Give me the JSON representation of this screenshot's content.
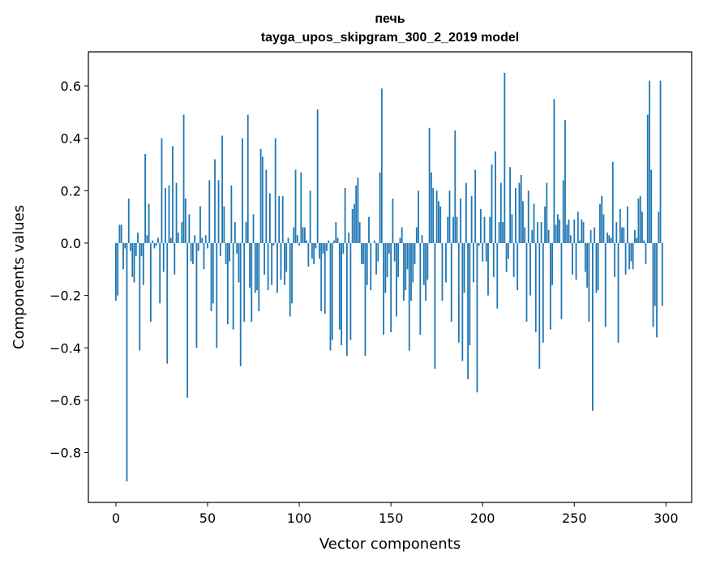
{
  "chart_data": {
    "type": "bar",
    "title": "печь",
    "subtitle": "tayga_upos_skipgram_300_2_2019 model",
    "xlabel": "Vector components",
    "ylabel": "Components values",
    "xlim": [
      -15,
      314
    ],
    "ylim": [
      -0.99,
      0.73
    ],
    "xticks": [
      0,
      50,
      100,
      150,
      200,
      250,
      300
    ],
    "yticks": [
      -0.8,
      -0.6,
      -0.4,
      -0.2,
      0.0,
      0.2,
      0.4,
      0.6
    ],
    "ytick_labels": [
      "−0.8",
      "−0.6",
      "−0.4",
      "−0.2",
      "0.0",
      "0.2",
      "0.4",
      "0.6"
    ],
    "bar_color": "#1f77b4",
    "grid": false,
    "values": [
      -0.22,
      -0.2,
      0.07,
      0.07,
      -0.1,
      -0.02,
      -0.91,
      0.17,
      -0.03,
      -0.13,
      -0.15,
      -0.05,
      0.04,
      -0.41,
      -0.05,
      -0.16,
      0.34,
      0.03,
      0.15,
      -0.3,
      0.01,
      -0.02,
      -0.01,
      0.02,
      -0.23,
      0.4,
      -0.11,
      0.21,
      -0.46,
      0.22,
      0.02,
      0.37,
      -0.12,
      0.23,
      0.04,
      0.0,
      0.08,
      0.49,
      0.17,
      -0.59,
      0.11,
      -0.07,
      -0.08,
      0.03,
      -0.4,
      -0.03,
      0.14,
      0.02,
      -0.1,
      0.03,
      -0.02,
      0.24,
      -0.26,
      -0.23,
      0.32,
      -0.4,
      0.24,
      -0.05,
      0.41,
      0.14,
      -0.08,
      -0.31,
      -0.07,
      0.22,
      -0.33,
      0.08,
      -0.04,
      -0.15,
      -0.47,
      0.4,
      -0.3,
      0.08,
      0.49,
      -0.17,
      -0.3,
      0.11,
      -0.19,
      -0.18,
      -0.26,
      0.36,
      0.33,
      -0.12,
      0.28,
      -0.18,
      0.19,
      -0.16,
      -0.01,
      0.4,
      -0.19,
      0.18,
      -0.14,
      0.18,
      -0.16,
      -0.11,
      0.02,
      -0.28,
      -0.23,
      0.06,
      0.28,
      0.03,
      -0.01,
      0.27,
      0.06,
      0.06,
      0.01,
      -0.09,
      0.2,
      -0.06,
      -0.08,
      -0.02,
      0.51,
      -0.06,
      -0.26,
      -0.04,
      -0.27,
      -0.03,
      0.01,
      -0.41,
      -0.37,
      0.01,
      0.08,
      0.02,
      -0.33,
      -0.39,
      -0.04,
      0.21,
      -0.43,
      0.04,
      -0.37,
      0.13,
      0.15,
      0.22,
      0.25,
      0.08,
      -0.08,
      -0.08,
      -0.43,
      -0.16,
      0.1,
      -0.18,
      0.0,
      0.01,
      -0.12,
      -0.07,
      0.27,
      0.59,
      -0.35,
      -0.19,
      -0.13,
      -0.04,
      -0.34,
      0.17,
      -0.07,
      -0.28,
      -0.13,
      0.02,
      0.06,
      -0.22,
      -0.18,
      -0.1,
      -0.41,
      -0.22,
      -0.15,
      -0.08,
      0.06,
      0.2,
      -0.35,
      0.03,
      -0.16,
      -0.22,
      -0.14,
      0.44,
      0.27,
      0.21,
      -0.48,
      0.2,
      0.16,
      0.14,
      -0.22,
      0.0,
      -0.15,
      0.1,
      0.2,
      -0.3,
      0.1,
      0.43,
      0.1,
      -0.38,
      0.17,
      -0.45,
      -0.19,
      0.23,
      -0.52,
      -0.39,
      0.18,
      -0.15,
      0.28,
      -0.57,
      -0.01,
      0.13,
      -0.07,
      0.1,
      -0.07,
      -0.2,
      0.1,
      0.3,
      -0.13,
      0.35,
      -0.25,
      0.08,
      0.23,
      0.08,
      0.65,
      -0.11,
      -0.06,
      0.29,
      0.11,
      -0.13,
      0.21,
      -0.18,
      0.23,
      0.26,
      0.16,
      0.06,
      -0.3,
      0.2,
      -0.2,
      0.05,
      0.15,
      -0.34,
      0.08,
      -0.48,
      0.08,
      -0.38,
      0.14,
      0.23,
      0.05,
      -0.33,
      -0.16,
      0.55,
      0.07,
      0.11,
      0.09,
      -0.29,
      0.24,
      0.47,
      0.07,
      0.09,
      0.03,
      -0.12,
      0.09,
      -0.14,
      0.12,
      0.01,
      0.09,
      0.08,
      -0.11,
      -0.17,
      -0.3,
      0.05,
      -0.64,
      0.06,
      -0.19,
      -0.18,
      0.15,
      0.18,
      0.11,
      -0.32,
      0.04,
      0.03,
      0.02,
      0.31,
      -0.13,
      0.08,
      -0.38,
      0.13,
      0.06,
      0.06,
      -0.12,
      0.14,
      -0.1,
      -0.07,
      -0.1,
      0.05,
      0.02,
      0.17,
      0.18,
      0.12,
      0.01,
      -0.08,
      0.49,
      0.62,
      0.28,
      -0.32,
      -0.24,
      -0.36,
      0.12,
      0.62,
      -0.24,
      0.0
    ]
  }
}
